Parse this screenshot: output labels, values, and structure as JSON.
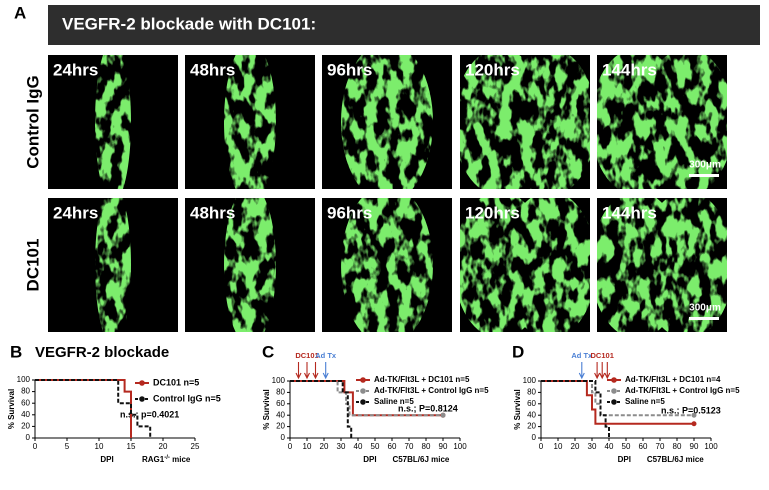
{
  "panel_a": {
    "label": "A",
    "title": "VEGFR-2 blockade with DC101:",
    "rows": [
      {
        "label": "Control IgG",
        "times": [
          "24hrs",
          "48hrs",
          "96hrs",
          "120hrs",
          "144hrs"
        ],
        "scale_bar": "300μm"
      },
      {
        "label": "DC101",
        "times": [
          "24hrs",
          "48hrs",
          "96hrs",
          "120hrs",
          "144hrs"
        ],
        "scale_bar": "300μm"
      }
    ]
  },
  "chart_data": [
    {
      "type": "step",
      "panel": "B",
      "title": "VEGFR-2 blockade",
      "xlabel": "DPI",
      "ylabel": "% Survival",
      "strain": "RAG1",
      "strain_sup": "-/-",
      "strain_suffix": " mice",
      "note": "n.s.; p=0.4021",
      "xlim": [
        0,
        25
      ],
      "xticks": [
        0,
        5,
        10,
        15,
        20,
        25
      ],
      "ylim": [
        0,
        100
      ],
      "yticks": [
        0,
        20,
        40,
        60,
        80,
        100
      ],
      "legend": "center right",
      "series": [
        {
          "name": "DC101 n=5",
          "color": "#b5291f",
          "dash": false,
          "x": [
            0,
            14,
            15
          ],
          "values": [
            100,
            80,
            0
          ]
        },
        {
          "name": "Control IgG n=5",
          "color": "#111111",
          "dash": true,
          "x": [
            0,
            13,
            15,
            16,
            18
          ],
          "values": [
            100,
            60,
            40,
            20,
            0
          ]
        }
      ]
    },
    {
      "type": "step",
      "panel": "C",
      "xlabel": "DPI",
      "ylabel": "% Survival",
      "strain": "C57BL/6J mice",
      "note": "n.s.; P=0.8124",
      "xlim": [
        0,
        100
      ],
      "xticks": [
        0,
        10,
        20,
        30,
        40,
        50,
        60,
        70,
        80,
        90,
        100
      ],
      "ylim": [
        0,
        100
      ],
      "yticks": [
        0,
        20,
        40,
        60,
        80,
        100
      ],
      "legend": "upper right",
      "arrows": [
        {
          "label": "DC101",
          "color": "#b5291f",
          "x": [
            5,
            10,
            15
          ]
        },
        {
          "label": "Ad Tx",
          "color": "#4a7fd4",
          "x": [
            21
          ]
        }
      ],
      "series": [
        {
          "name": "Ad-TK/Flt3L + DC101 n=5",
          "color": "#b5291f",
          "dash": false,
          "x": [
            0,
            32,
            37,
            90
          ],
          "values": [
            100,
            80,
            40,
            40
          ]
        },
        {
          "name": "Ad-TK/Flt3L + Control IgG n=5",
          "color": "#8c8c8c",
          "dash": true,
          "x": [
            0,
            28,
            33,
            35,
            90
          ],
          "values": [
            100,
            80,
            60,
            40,
            40
          ]
        },
        {
          "name": "Saline n=5",
          "color": "#111111",
          "dash": true,
          "x": [
            0,
            31,
            34,
            36
          ],
          "values": [
            100,
            80,
            20,
            0
          ]
        }
      ]
    },
    {
      "type": "step",
      "panel": "D",
      "xlabel": "DPI",
      "ylabel": "% Survival",
      "strain": "C57BL/6J mice",
      "note": "n.s.; P=0.5123",
      "xlim": [
        0,
        100
      ],
      "xticks": [
        0,
        10,
        20,
        30,
        40,
        50,
        60,
        70,
        80,
        90,
        100
      ],
      "ylim": [
        0,
        100
      ],
      "yticks": [
        0,
        20,
        40,
        60,
        80,
        100
      ],
      "legend": "upper right",
      "arrows": [
        {
          "label": "Ad Tx",
          "color": "#4a7fd4",
          "x": [
            24
          ]
        },
        {
          "label": "DC101",
          "color": "#b5291f",
          "x": [
            33,
            36,
            39
          ]
        }
      ],
      "series": [
        {
          "name": "Ad-TK/Flt3L + DC101 n=4",
          "color": "#b5291f",
          "dash": false,
          "x": [
            0,
            27,
            30,
            32,
            90
          ],
          "values": [
            100,
            75,
            50,
            25,
            25
          ]
        },
        {
          "name": "Ad-TK/Flt3L + Control IgG n=5",
          "color": "#8c8c8c",
          "dash": true,
          "x": [
            0,
            30,
            32,
            35,
            90
          ],
          "values": [
            100,
            80,
            60,
            40,
            40
          ]
        },
        {
          "name": "Saline n=5",
          "color": "#111111",
          "dash": true,
          "x": [
            0,
            32,
            35,
            38,
            40
          ],
          "values": [
            100,
            80,
            40,
            20,
            0
          ]
        }
      ]
    }
  ]
}
